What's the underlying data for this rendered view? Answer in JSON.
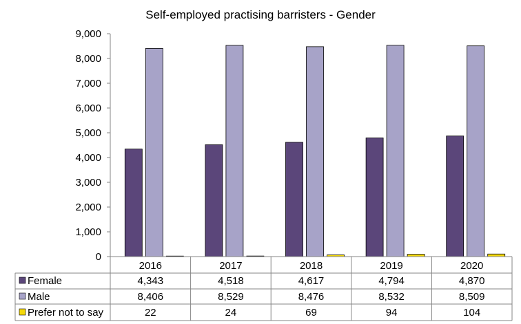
{
  "chart_data": {
    "type": "bar",
    "title": "Self-employed practising barristers - Gender",
    "categories": [
      "2016",
      "2017",
      "2018",
      "2019",
      "2020"
    ],
    "series": [
      {
        "name": "Female",
        "color": "#5b467a",
        "values": [
          4343,
          4518,
          4617,
          4794,
          4870
        ],
        "labels": [
          "4,343",
          "4,518",
          "4,617",
          "4,794",
          "4,870"
        ]
      },
      {
        "name": "Male",
        "color": "#a7a3c8",
        "values": [
          8406,
          8529,
          8476,
          8532,
          8509
        ],
        "labels": [
          "8,406",
          "8,529",
          "8,476",
          "8,532",
          "8,509"
        ]
      },
      {
        "name": "Prefer not to say",
        "color": "#f5d90a",
        "values": [
          22,
          24,
          69,
          94,
          104
        ],
        "labels": [
          "22",
          "24",
          "69",
          "94",
          "104"
        ]
      }
    ],
    "ylim": [
      0,
      9000
    ],
    "yticks": [
      "0",
      "1,000",
      "2,000",
      "3,000",
      "4,000",
      "5,000",
      "6,000",
      "7,000",
      "8,000",
      "9,000"
    ],
    "grid": false,
    "legend": "data-table-below"
  }
}
